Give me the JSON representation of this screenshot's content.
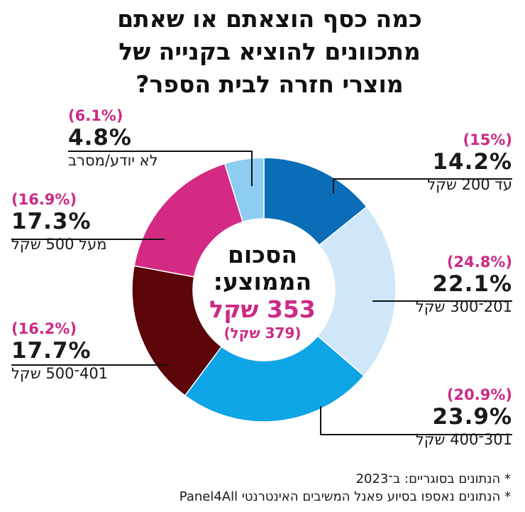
{
  "title_lines": [
    "כמה כסף הוצאתם או שאתם",
    "מתכוונים להוציא בקנייה של",
    "מוצרי חזרה לבית הספר?"
  ],
  "center": {
    "line1": "הסכום",
    "line2": "הממוצע:",
    "value": "353 שקל",
    "previous": "(379 שקל)"
  },
  "notes": [
    "* הנתונים בסוגריים: ב־2023",
    "* הנתונים נאספו בסיוע פאנל המשיבים האינטרנטי Panel4All"
  ],
  "colors": {
    "accent": "#cc2a86",
    "up_to_200": "#0b6db7",
    "201_300": "#cfe7f8",
    "301_400": "#0ea5e6",
    "401_500": "#5b0509",
    "over_500": "#d42a83",
    "dont_know": "#8ecdf2"
  },
  "chart_data": {
    "type": "pie",
    "variant": "donut",
    "title": "כמה כסף הוצאתם או שאתם מתכוונים להוציא בקנייה של מוצרי חזרה לבית הספר?",
    "categories": [
      "עד 200 שקל",
      "201־300 שקל",
      "301־400 שקל",
      "401־500 שקל",
      "מעל 500 שקל",
      "לא יודע/מסרב"
    ],
    "series": [
      {
        "values": [
          14.2,
          22.1,
          23.9,
          17.7,
          17.3,
          4.8
        ]
      },
      {
        "values": [
          15,
          24.8,
          20.9,
          16.2,
          16.9,
          6.1
        ]
      }
    ],
    "value_labels": [
      "14.2%",
      "22.1%",
      "23.9%",
      "17.7%",
      "17.3%",
      "4.8%"
    ],
    "previous_labels": [
      "(15%)",
      "(24.8%)",
      "(20.9%)",
      "(16.2%)",
      "(16.9%)",
      "(6.1%)"
    ],
    "colors": [
      "#0b6db7",
      "#cfe7f8",
      "#0ea5e6",
      "#5b0509",
      "#d42a83",
      "#8ecdf2"
    ]
  }
}
